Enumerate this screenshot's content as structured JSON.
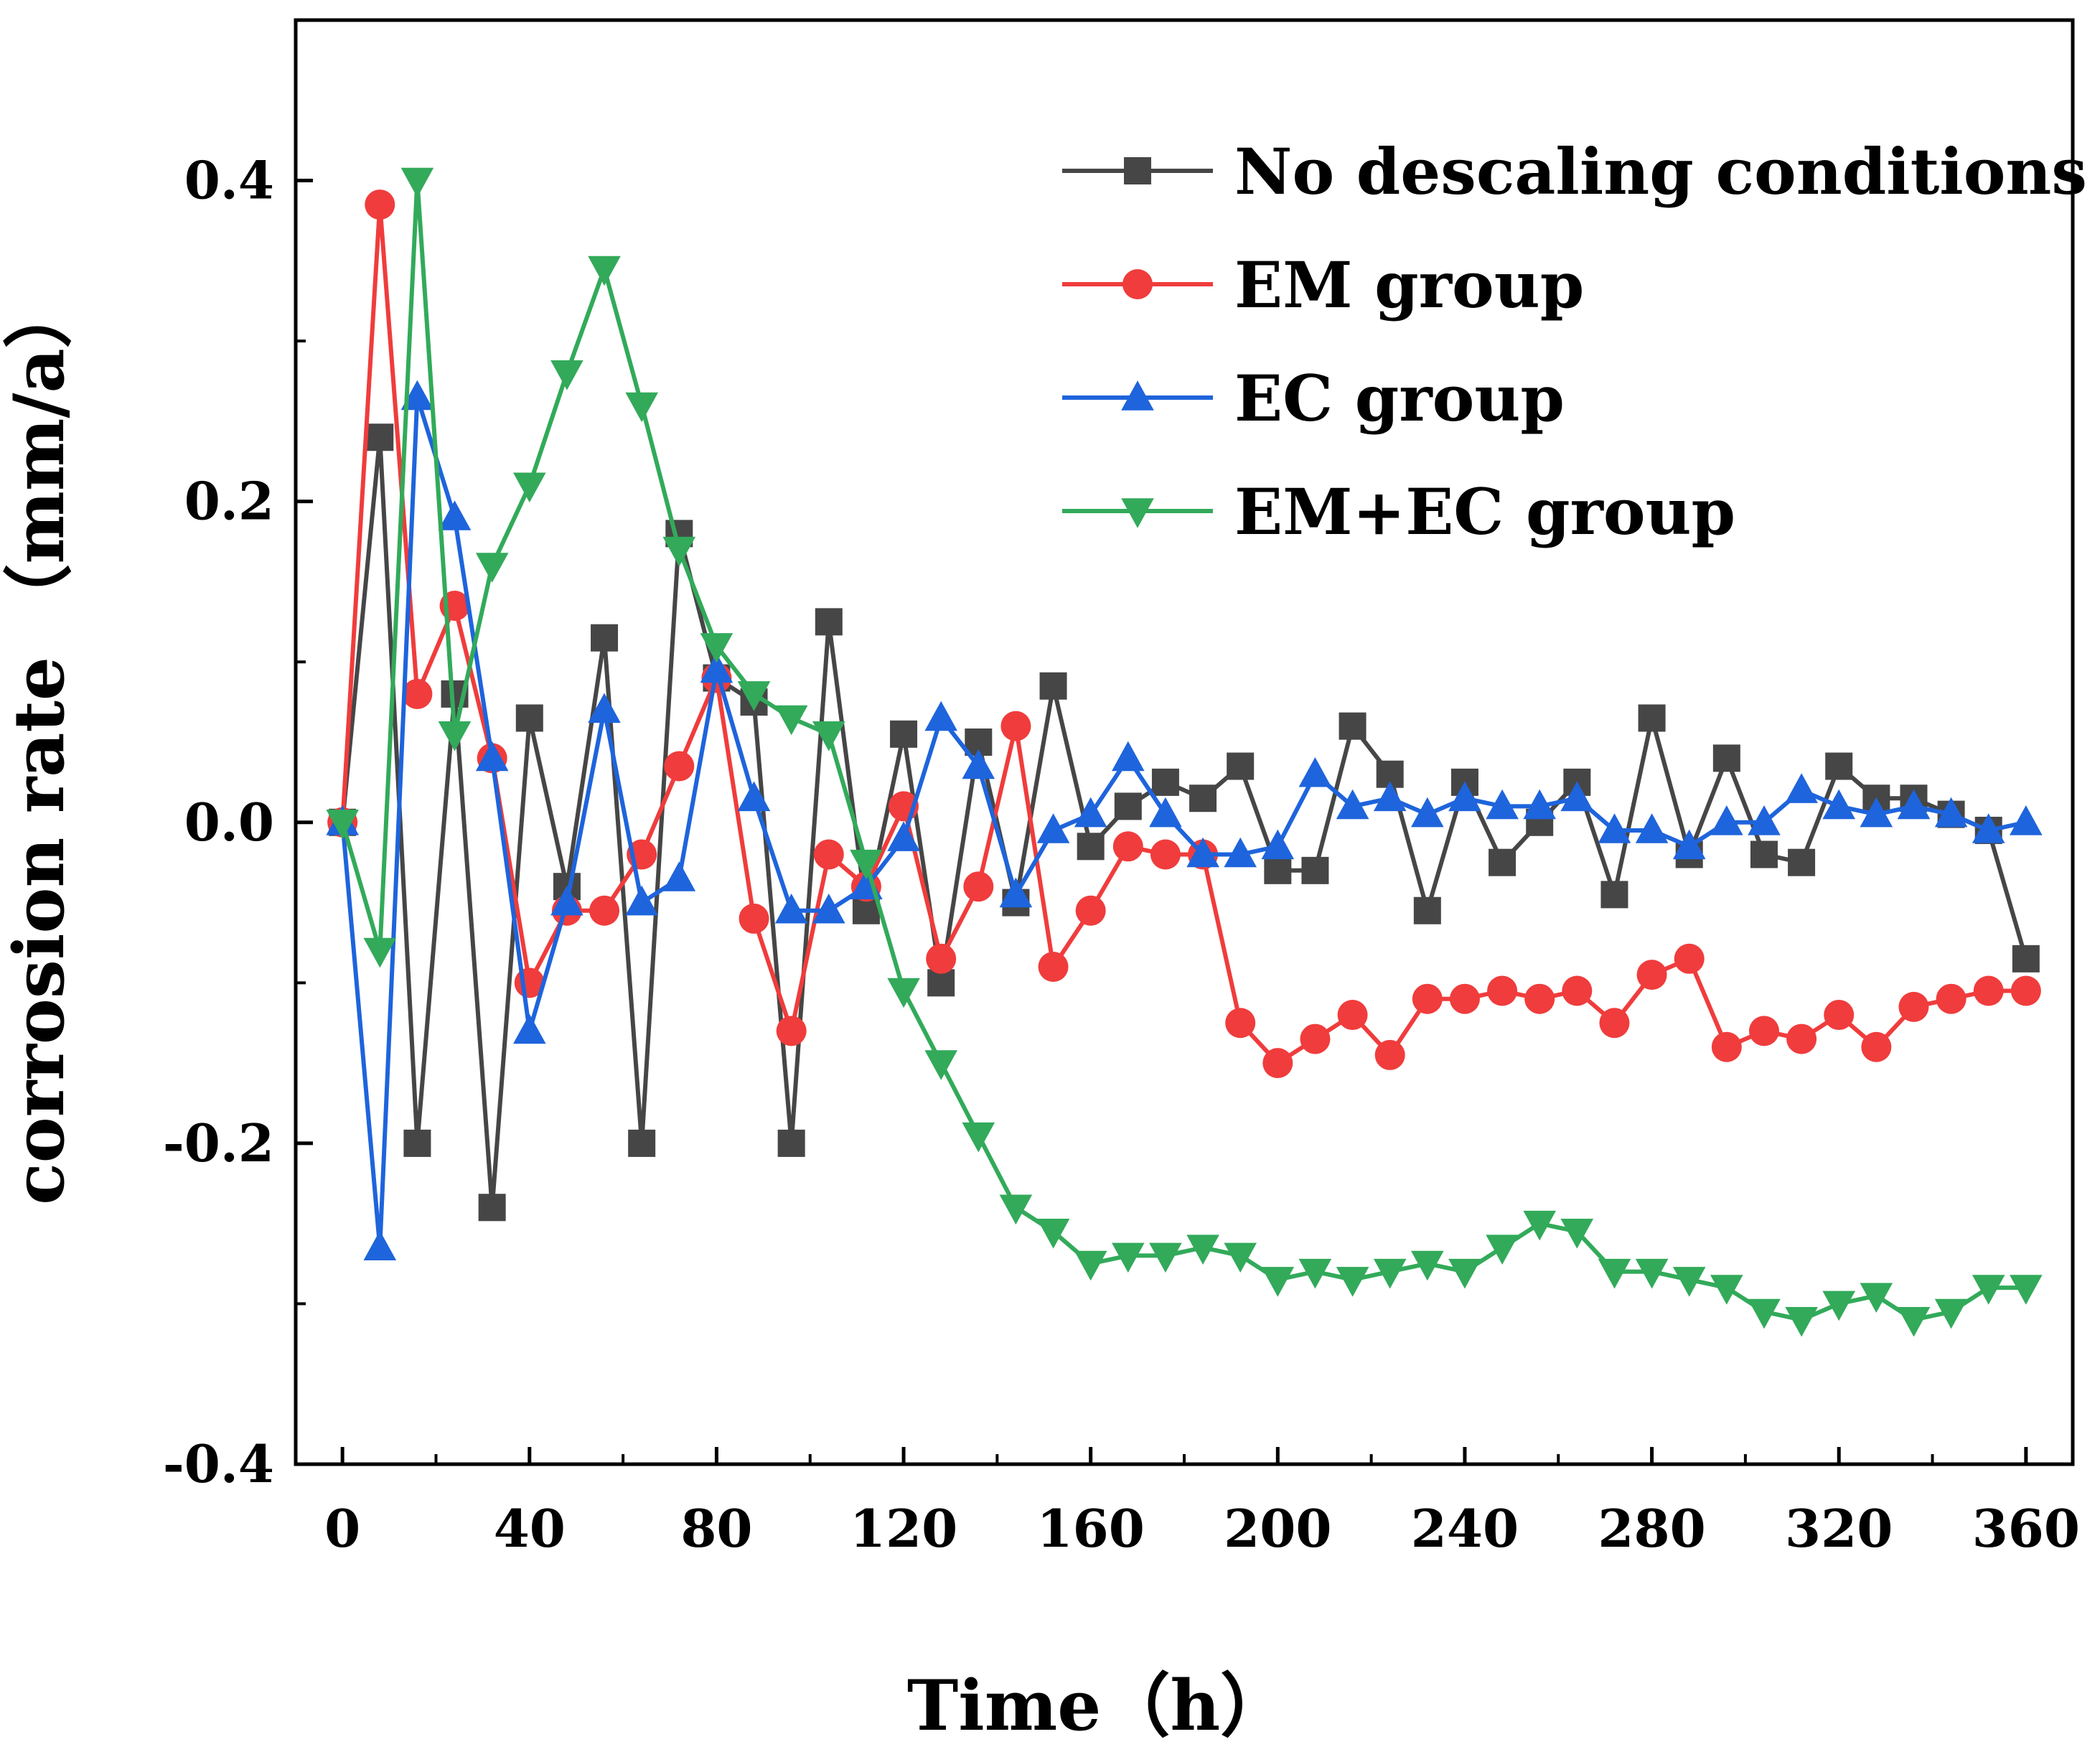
{
  "chart_data": {
    "type": "line",
    "title": "",
    "xlabel": "Time（h）",
    "ylabel": "corrosion rate （mm/a）",
    "xlim": [
      -10,
      370
    ],
    "ylim": [
      -0.4,
      0.5
    ],
    "xticks": [
      0,
      40,
      80,
      120,
      160,
      200,
      240,
      280,
      320,
      360
    ],
    "xtick_labels": [
      "0",
      "40",
      "80",
      "120",
      "160",
      "200",
      "240",
      "280",
      "320",
      "360"
    ],
    "yticks": [
      -0.4,
      -0.2,
      0.0,
      0.2,
      0.4
    ],
    "ytick_labels": [
      "-0.4",
      "-0.2",
      "0.0",
      "0.2",
      "0.4"
    ],
    "grid": false,
    "legend_position": "top-right",
    "x": [
      0,
      8,
      16,
      24,
      32,
      40,
      48,
      56,
      64,
      72,
      80,
      88,
      96,
      104,
      112,
      120,
      128,
      136,
      144,
      152,
      160,
      168,
      176,
      184,
      192,
      200,
      208,
      216,
      224,
      232,
      240,
      248,
      256,
      264,
      272,
      280,
      288,
      296,
      304,
      312,
      320,
      328,
      336,
      344,
      352,
      360
    ],
    "series": [
      {
        "name": "No descaling conditions",
        "color": "#464646",
        "marker": "square",
        "values": [
          0.0,
          0.24,
          -0.2,
          0.08,
          -0.24,
          0.065,
          -0.04,
          0.115,
          -0.2,
          0.18,
          0.09,
          0.075,
          -0.2,
          0.125,
          -0.055,
          0.055,
          -0.1,
          0.05,
          -0.05,
          0.085,
          -0.015,
          0.01,
          0.025,
          0.015,
          0.035,
          -0.03,
          -0.03,
          0.06,
          0.03,
          -0.055,
          0.025,
          -0.025,
          0.0,
          0.025,
          -0.045,
          0.065,
          -0.02,
          0.04,
          -0.02,
          -0.025,
          0.035,
          0.015,
          0.015,
          0.005,
          -0.005,
          -0.085
        ]
      },
      {
        "name": "EM group",
        "color": "#f03c3c",
        "marker": "circle",
        "values": [
          0.0,
          0.385,
          0.08,
          0.135,
          0.04,
          -0.1,
          -0.055,
          -0.055,
          -0.02,
          0.035,
          0.09,
          -0.06,
          -0.13,
          -0.02,
          -0.04,
          0.01,
          -0.085,
          -0.04,
          0.06,
          -0.09,
          -0.055,
          -0.015,
          -0.02,
          -0.02,
          -0.125,
          -0.15,
          -0.135,
          -0.12,
          -0.145,
          -0.11,
          -0.11,
          -0.105,
          -0.11,
          -0.105,
          -0.125,
          -0.095,
          -0.085,
          -0.14,
          -0.13,
          -0.135,
          -0.12,
          -0.14,
          -0.115,
          -0.11,
          -0.105,
          -0.105
        ]
      },
      {
        "name": "EC group",
        "color": "#1e64dc",
        "marker": "triangle-up",
        "values": [
          0.0,
          -0.265,
          0.265,
          0.19,
          0.04,
          -0.13,
          -0.05,
          0.07,
          -0.05,
          -0.035,
          0.095,
          0.015,
          -0.055,
          -0.055,
          -0.04,
          -0.01,
          0.065,
          0.035,
          -0.045,
          -0.005,
          0.005,
          0.04,
          0.005,
          -0.02,
          -0.02,
          -0.015,
          0.03,
          0.01,
          0.015,
          0.005,
          0.015,
          0.01,
          0.01,
          0.015,
          -0.005,
          -0.005,
          -0.015,
          0.0,
          0.0,
          0.02,
          0.01,
          0.005,
          0.01,
          0.005,
          -0.005,
          0.0
        ]
      },
      {
        "name": "EM+EC group",
        "color": "#32aa5a",
        "marker": "triangle-down",
        "values": [
          0.0,
          -0.08,
          0.4,
          0.055,
          0.16,
          0.21,
          0.28,
          0.345,
          0.26,
          0.17,
          0.11,
          0.08,
          0.065,
          0.055,
          -0.025,
          -0.105,
          -0.15,
          -0.195,
          -0.24,
          -0.255,
          -0.275,
          -0.27,
          -0.27,
          -0.265,
          -0.27,
          -0.285,
          -0.28,
          -0.285,
          -0.28,
          -0.275,
          -0.28,
          -0.265,
          -0.25,
          -0.255,
          -0.28,
          -0.28,
          -0.285,
          -0.29,
          -0.305,
          -0.31,
          -0.3,
          -0.295,
          -0.31,
          -0.305,
          -0.29,
          -0.29
        ]
      }
    ]
  }
}
